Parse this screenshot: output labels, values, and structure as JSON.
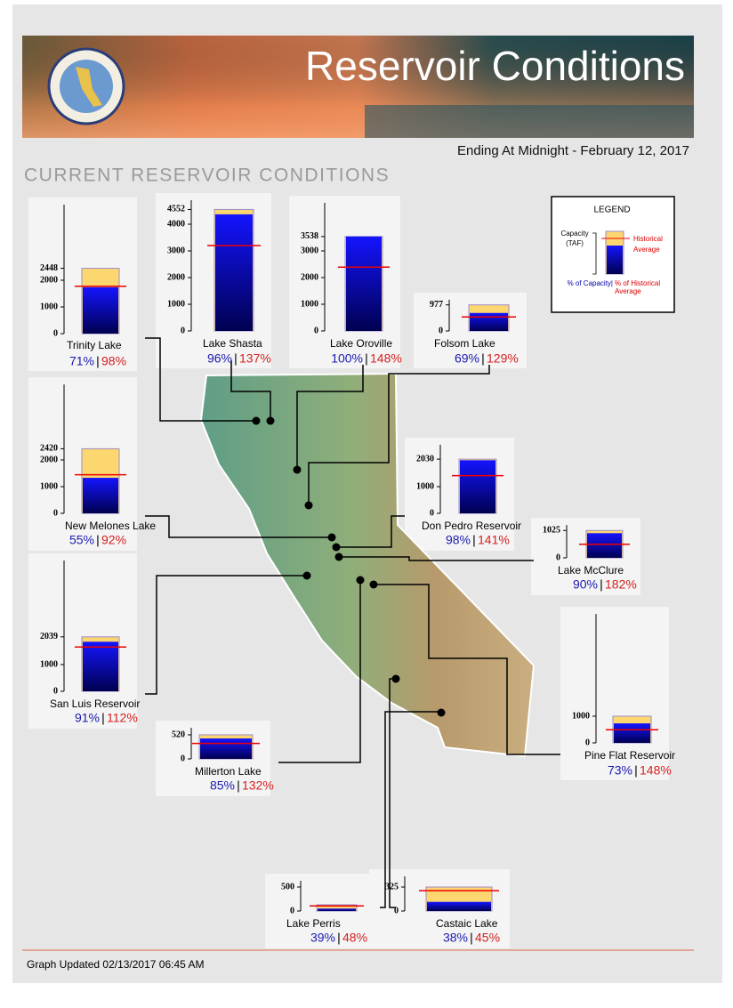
{
  "header": {
    "title": "Reservoir Conditions",
    "date": "Ending At Midnight - February 12, 2017",
    "section": "CURRENT RESERVOIR CONDITIONS"
  },
  "separator": "|",
  "legend": {
    "title": "LEGEND",
    "capacity": "Capacity",
    "unit": "(TAF)",
    "historical": "Historical",
    "average": "Average",
    "pct_capacity": "% of Capacity|",
    "pct_historical": "% of Historical",
    "pct_average": "Average"
  },
  "footer": "Graph Updated 02/13/2017 06:45 AM",
  "chart_data": [
    {
      "type": "reservoir",
      "title": "Trinity Lake",
      "capacity": 2448,
      "storage": 1738,
      "historical_average": 1774,
      "pct_capacity": "71%",
      "pct_average": "98%",
      "ylim": [
        0,
        4833
      ],
      "yticks": [
        0,
        1000,
        2000,
        2448
      ]
    },
    {
      "type": "reservoir",
      "title": "Lake Shasta",
      "capacity": 4552,
      "storage": 4370,
      "historical_average": 3200,
      "pct_capacity": "96%",
      "pct_average": "137%",
      "ylim": [
        0,
        4900
      ],
      "yticks": [
        0,
        1000,
        2000,
        3000,
        4000,
        4552
      ]
    },
    {
      "type": "reservoir",
      "title": "Lake Oroville",
      "capacity": 3538,
      "storage": 3538,
      "historical_average": 2390,
      "pct_capacity": "100%",
      "pct_average": "148%",
      "ylim": [
        0,
        4800
      ],
      "yticks": [
        0,
        1000,
        2000,
        3000,
        3538
      ]
    },
    {
      "type": "reservoir",
      "title": "Folsom Lake",
      "capacity": 977,
      "storage": 674,
      "historical_average": 523,
      "pct_capacity": "69%",
      "pct_average": "129%",
      "ylim": [
        0,
        1170
      ],
      "yticks": [
        0,
        977
      ]
    },
    {
      "type": "reservoir",
      "title": "New Melones Lake",
      "capacity": 2420,
      "storage": 1331,
      "historical_average": 1447,
      "pct_capacity": "55%",
      "pct_average": "92%",
      "ylim": [
        0,
        4830
      ],
      "yticks": [
        0,
        1000,
        2000,
        2420
      ]
    },
    {
      "type": "reservoir",
      "title": "Don Pedro Reservoir",
      "capacity": 2030,
      "storage": 1989,
      "historical_average": 1411,
      "pct_capacity": "98%",
      "pct_average": "141%",
      "ylim": [
        0,
        2570
      ],
      "yticks": [
        0,
        1000,
        2030
      ]
    },
    {
      "type": "reservoir",
      "title": "Lake McClure",
      "capacity": 1025,
      "storage": 923,
      "historical_average": 507,
      "pct_capacity": "90%",
      "pct_average": "182%",
      "ylim": [
        0,
        1230
      ],
      "yticks": [
        0,
        1025
      ]
    },
    {
      "type": "reservoir",
      "title": "San Luis Reservoir",
      "capacity": 2039,
      "storage": 1855,
      "historical_average": 1657,
      "pct_capacity": "91%",
      "pct_average": "112%",
      "ylim": [
        0,
        4900
      ],
      "yticks": [
        0,
        1000,
        2039
      ]
    },
    {
      "type": "reservoir",
      "title": "Millerton Lake",
      "capacity": 520,
      "storage": 442,
      "historical_average": 335,
      "pct_capacity": "85%",
      "pct_average": "132%",
      "ylim": [
        0,
        673
      ],
      "yticks": [
        0,
        520
      ]
    },
    {
      "type": "reservoir",
      "title": "Pine Flat Reservoir",
      "capacity": 1000,
      "storage": 730,
      "historical_average": 493,
      "pct_capacity": "73%",
      "pct_average": "148%",
      "ylim": [
        0,
        4830
      ],
      "yticks": [
        0,
        1000
      ]
    },
    {
      "type": "reservoir",
      "title": "Lake Perris",
      "capacity": 131,
      "storage": 51,
      "historical_average": 106,
      "pct_capacity": "39%",
      "pct_average": "48%",
      "ylim": [
        0,
        630
      ],
      "yticks": [
        0,
        500
      ]
    },
    {
      "type": "reservoir",
      "title": "Castaic Lake",
      "capacity": 325,
      "storage": 124,
      "historical_average": 275,
      "pct_capacity": "38%",
      "pct_average": "45%",
      "ylim": [
        0,
        470
      ],
      "yticks": [
        0,
        325
      ]
    }
  ]
}
